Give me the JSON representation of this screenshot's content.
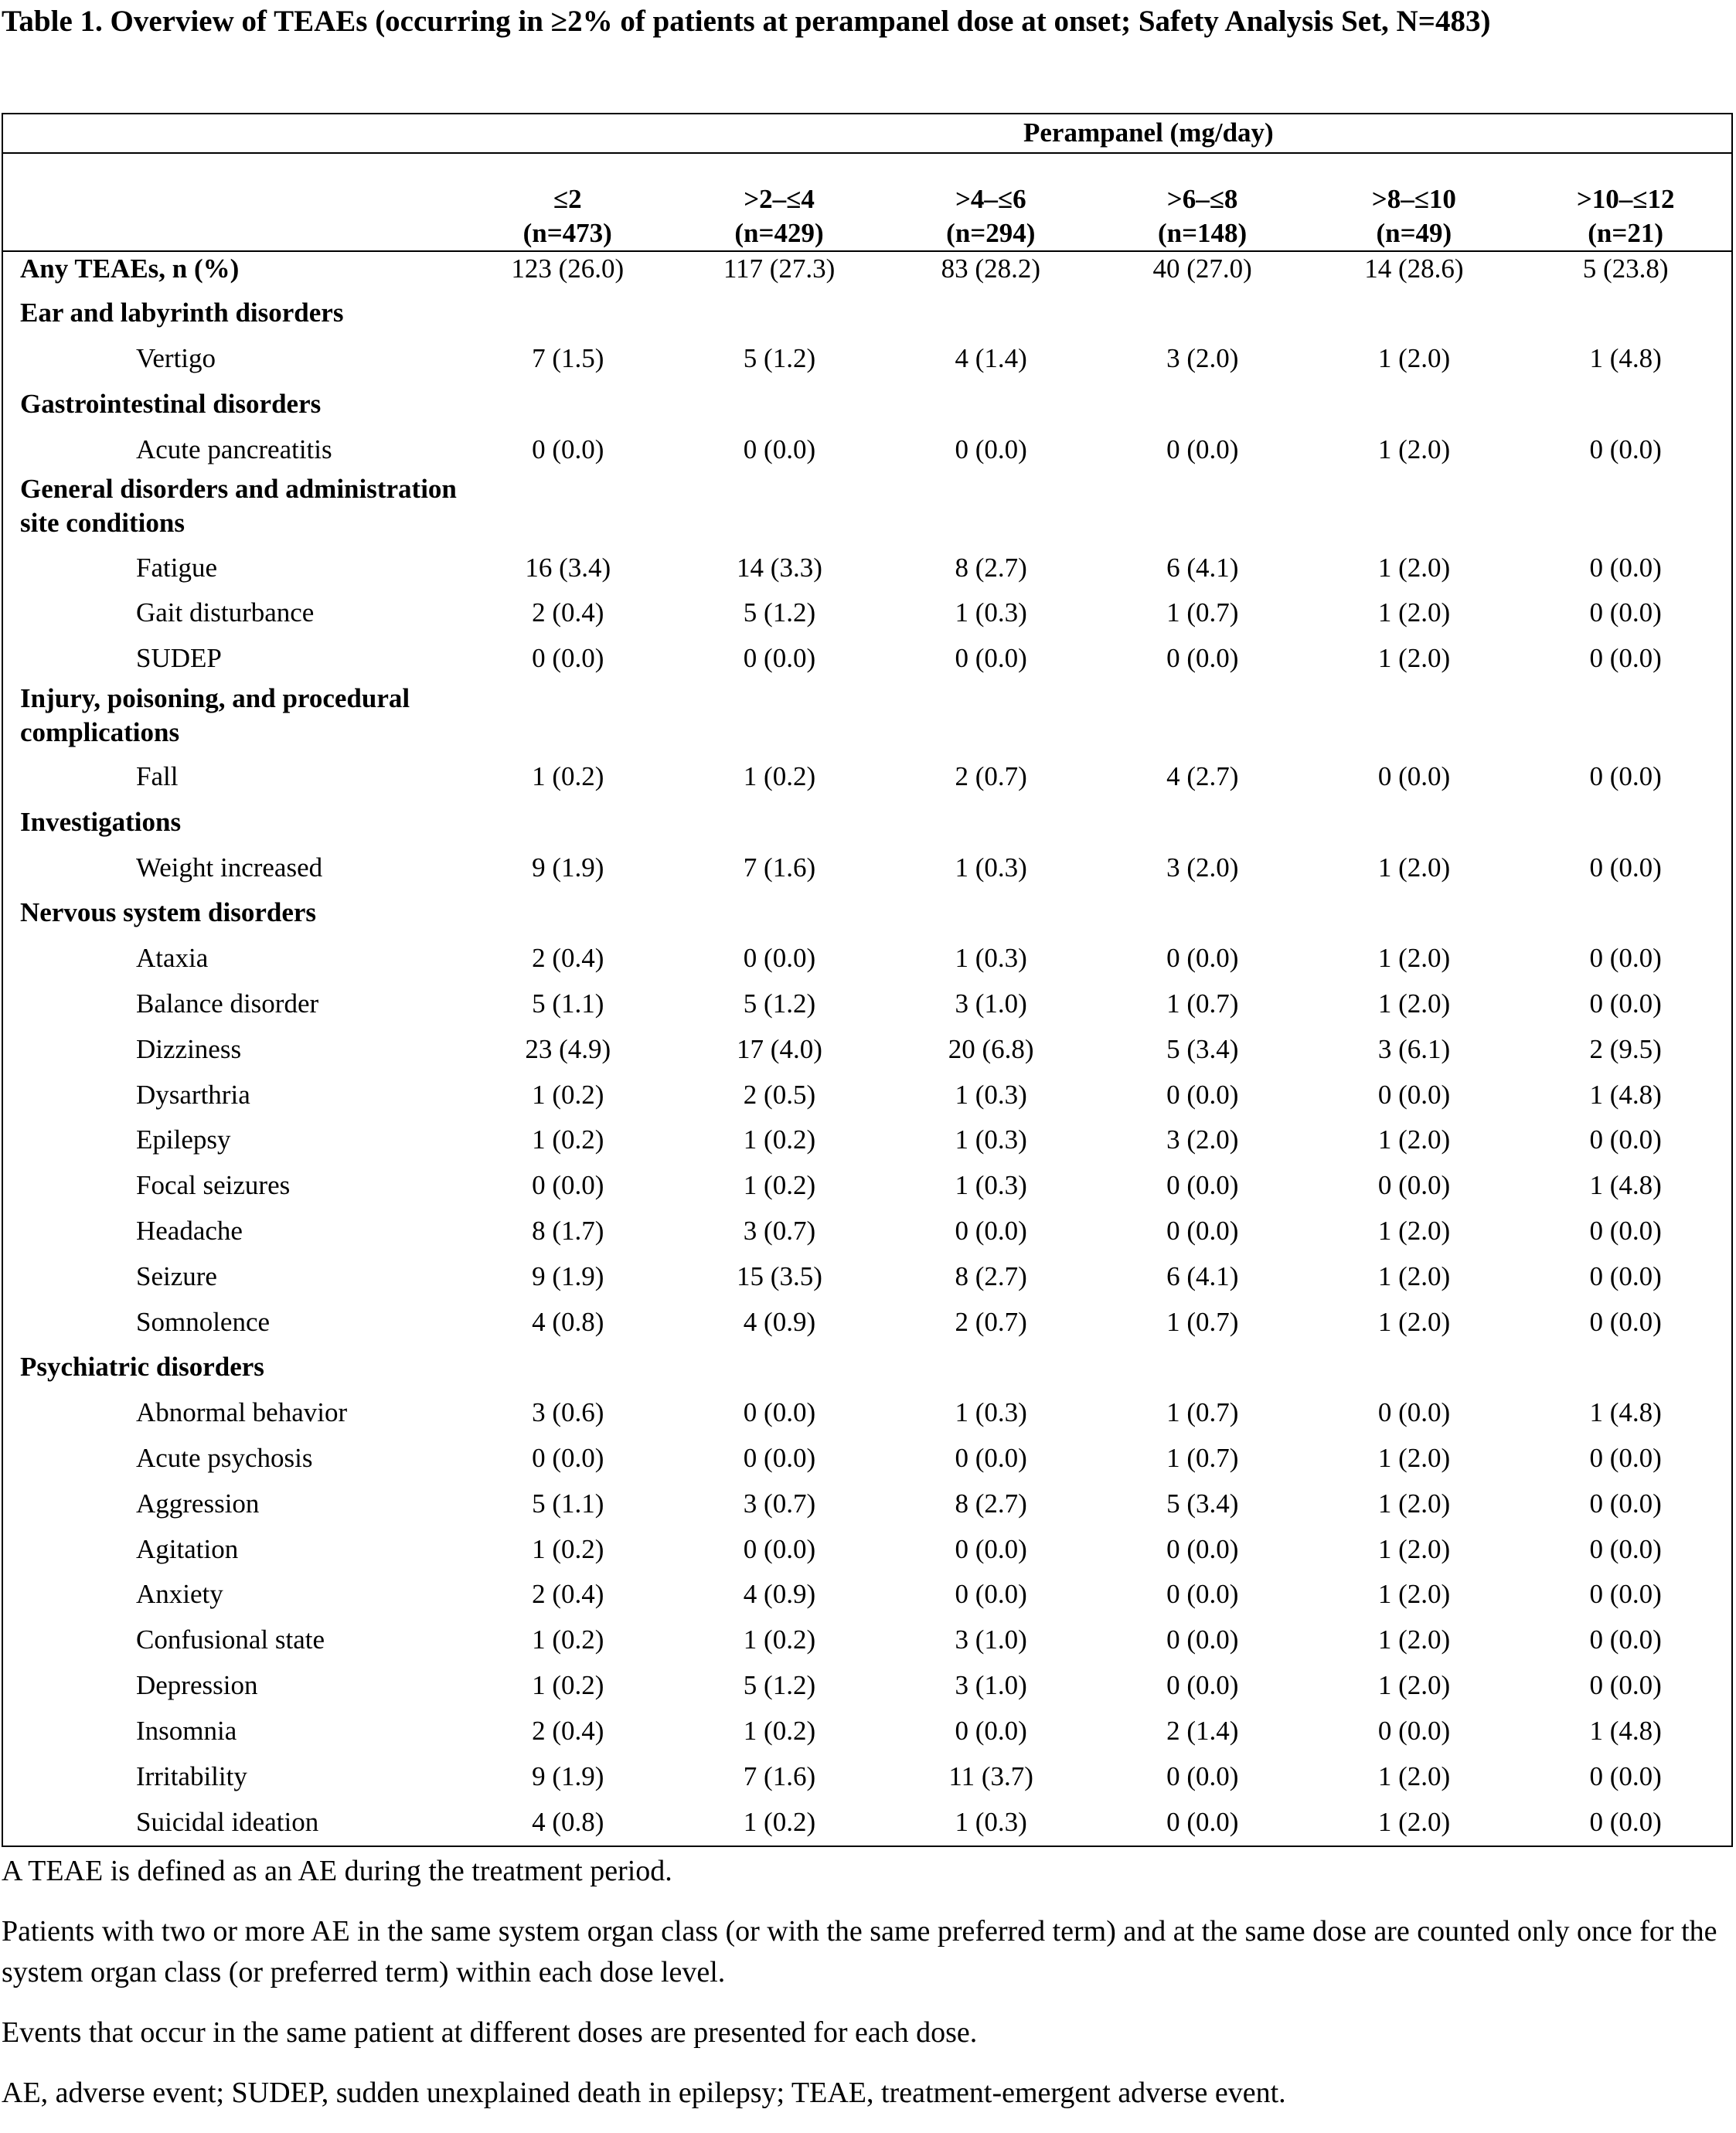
{
  "title": "Table 1. Overview of TEAEs (occurring in ≥2% of patients at perampanel dose at onset; Safety Analysis Set, N=483)",
  "table": {
    "group_header": "Perampanel (mg/day)",
    "columns": [
      {
        "dose": "≤2",
        "n": "(n=473)"
      },
      {
        "dose": ">2–≤4",
        "n": "(n=429)"
      },
      {
        "dose": ">4–≤6",
        "n": "(n=294)"
      },
      {
        "dose": ">6–≤8",
        "n": "(n=148)"
      },
      {
        "dose": ">8–≤10",
        "n": "(n=49)"
      },
      {
        "dose": ">10–≤12",
        "n": "(n=21)"
      }
    ],
    "rows": [
      {
        "type": "total",
        "label": "Any TEAEs, n (%)",
        "values": [
          "123 (26.0)",
          "117 (27.3)",
          "83 (28.2)",
          "40 (27.0)",
          "14 (28.6)",
          "5 (23.8)"
        ]
      },
      {
        "type": "soc",
        "label": "Ear and labyrinth disorders"
      },
      {
        "type": "pt",
        "label": "Vertigo",
        "values": [
          "7 (1.5)",
          "5 (1.2)",
          "4 (1.4)",
          "3 (2.0)",
          "1 (2.0)",
          "1 (4.8)"
        ]
      },
      {
        "type": "soc",
        "label": "Gastrointestinal disorders"
      },
      {
        "type": "pt",
        "label": "Acute pancreatitis",
        "values": [
          "0 (0.0)",
          "0 (0.0)",
          "0 (0.0)",
          "0 (0.0)",
          "1 (2.0)",
          "0 (0.0)"
        ]
      },
      {
        "type": "soc2",
        "label": "General disorders and administration site conditions"
      },
      {
        "type": "pt",
        "label": "Fatigue",
        "values": [
          "16 (3.4)",
          "14 (3.3)",
          "8 (2.7)",
          "6 (4.1)",
          "1 (2.0)",
          "0 (0.0)"
        ]
      },
      {
        "type": "pt",
        "label": "Gait disturbance",
        "values": [
          "2 (0.4)",
          "5 (1.2)",
          "1 (0.3)",
          "1 (0.7)",
          "1 (2.0)",
          "0 (0.0)"
        ]
      },
      {
        "type": "pt",
        "label": "SUDEP",
        "values": [
          "0 (0.0)",
          "0 (0.0)",
          "0 (0.0)",
          "0 (0.0)",
          "1 (2.0)",
          "0 (0.0)"
        ]
      },
      {
        "type": "soc2",
        "label": "Injury, poisoning, and procedural complications"
      },
      {
        "type": "pt",
        "label": "Fall",
        "values": [
          "1 (0.2)",
          "1 (0.2)",
          "2 (0.7)",
          "4 (2.7)",
          "0 (0.0)",
          "0 (0.0)"
        ]
      },
      {
        "type": "soc",
        "label": "Investigations"
      },
      {
        "type": "pt",
        "label": "Weight increased",
        "values": [
          "9 (1.9)",
          "7 (1.6)",
          "1 (0.3)",
          "3 (2.0)",
          "1 (2.0)",
          "0 (0.0)"
        ]
      },
      {
        "type": "soc",
        "label": "Nervous system disorders"
      },
      {
        "type": "pt",
        "label": "Ataxia",
        "values": [
          "2 (0.4)",
          "0 (0.0)",
          "1 (0.3)",
          "0 (0.0)",
          "1 (2.0)",
          "0 (0.0)"
        ]
      },
      {
        "type": "pt",
        "label": "Balance disorder",
        "values": [
          "5 (1.1)",
          "5 (1.2)",
          "3 (1.0)",
          "1 (0.7)",
          "1 (2.0)",
          "0 (0.0)"
        ]
      },
      {
        "type": "pt",
        "label": "Dizziness",
        "values": [
          "23 (4.9)",
          "17 (4.0)",
          "20 (6.8)",
          "5 (3.4)",
          "3 (6.1)",
          "2 (9.5)"
        ]
      },
      {
        "type": "pt",
        "label": "Dysarthria",
        "values": [
          "1 (0.2)",
          "2 (0.5)",
          "1 (0.3)",
          "0 (0.0)",
          "0 (0.0)",
          "1 (4.8)"
        ]
      },
      {
        "type": "pt",
        "label": "Epilepsy",
        "values": [
          "1 (0.2)",
          "1 (0.2)",
          "1 (0.3)",
          "3 (2.0)",
          "1 (2.0)",
          "0 (0.0)"
        ]
      },
      {
        "type": "pt",
        "label": "Focal seizures",
        "values": [
          "0 (0.0)",
          "1 (0.2)",
          "1 (0.3)",
          "0 (0.0)",
          "0 (0.0)",
          "1 (4.8)"
        ]
      },
      {
        "type": "pt",
        "label": "Headache",
        "values": [
          "8 (1.7)",
          "3 (0.7)",
          "0 (0.0)",
          "0 (0.0)",
          "1 (2.0)",
          "0 (0.0)"
        ]
      },
      {
        "type": "pt",
        "label": "Seizure",
        "values": [
          "9 (1.9)",
          "15 (3.5)",
          "8 (2.7)",
          "6 (4.1)",
          "1 (2.0)",
          "0 (0.0)"
        ]
      },
      {
        "type": "pt",
        "label": "Somnolence",
        "values": [
          "4 (0.8)",
          "4 (0.9)",
          "2 (0.7)",
          "1 (0.7)",
          "1 (2.0)",
          "0 (0.0)"
        ]
      },
      {
        "type": "soc",
        "label": "Psychiatric disorders"
      },
      {
        "type": "pt",
        "label": "Abnormal behavior",
        "values": [
          "3 (0.6)",
          "0 (0.0)",
          "1 (0.3)",
          "1 (0.7)",
          "0 (0.0)",
          "1 (4.8)"
        ]
      },
      {
        "type": "pt",
        "label": "Acute psychosis",
        "values": [
          "0 (0.0)",
          "0 (0.0)",
          "0 (0.0)",
          "1 (0.7)",
          "1 (2.0)",
          "0 (0.0)"
        ]
      },
      {
        "type": "pt",
        "label": "Aggression",
        "values": [
          "5 (1.1)",
          "3 (0.7)",
          "8 (2.7)",
          "5 (3.4)",
          "1 (2.0)",
          "0 (0.0)"
        ]
      },
      {
        "type": "pt",
        "label": "Agitation",
        "values": [
          "1 (0.2)",
          "0 (0.0)",
          "0 (0.0)",
          "0 (0.0)",
          "1 (2.0)",
          "0 (0.0)"
        ]
      },
      {
        "type": "pt",
        "label": "Anxiety",
        "values": [
          "2 (0.4)",
          "4 (0.9)",
          "0 (0.0)",
          "0 (0.0)",
          "1 (2.0)",
          "0 (0.0)"
        ]
      },
      {
        "type": "pt",
        "label": "Confusional state",
        "values": [
          "1 (0.2)",
          "1 (0.2)",
          "3 (1.0)",
          "0 (0.0)",
          "1 (2.0)",
          "0 (0.0)"
        ]
      },
      {
        "type": "pt",
        "label": "Depression",
        "values": [
          "1 (0.2)",
          "5 (1.2)",
          "3 (1.0)",
          "0 (0.0)",
          "1 (2.0)",
          "0 (0.0)"
        ]
      },
      {
        "type": "pt",
        "label": "Insomnia",
        "values": [
          "2 (0.4)",
          "1 (0.2)",
          "0 (0.0)",
          "2 (1.4)",
          "0 (0.0)",
          "1 (4.8)"
        ]
      },
      {
        "type": "pt",
        "label": "Irritability",
        "values": [
          "9 (1.9)",
          "7 (1.6)",
          "11 (3.7)",
          "0 (0.0)",
          "1 (2.0)",
          "0 (0.0)"
        ]
      },
      {
        "type": "pt",
        "label": "Suicidal ideation",
        "values": [
          "4 (0.8)",
          "1 (0.2)",
          "1 (0.3)",
          "0 (0.0)",
          "1 (2.0)",
          "0 (0.0)"
        ]
      }
    ]
  },
  "footnotes": [
    "A TEAE is defined as an AE during the treatment period.",
    "Patients with two or more AE in the same system organ class (or with the same preferred term) and at the same dose are counted only once for the system organ class (or preferred term) within each dose level.",
    "Events that occur in the same patient at different doses are presented for each dose.",
    "AE, adverse event; SUDEP, sudden unexplained death in epilepsy; TEAE, treatment-emergent adverse event."
  ]
}
